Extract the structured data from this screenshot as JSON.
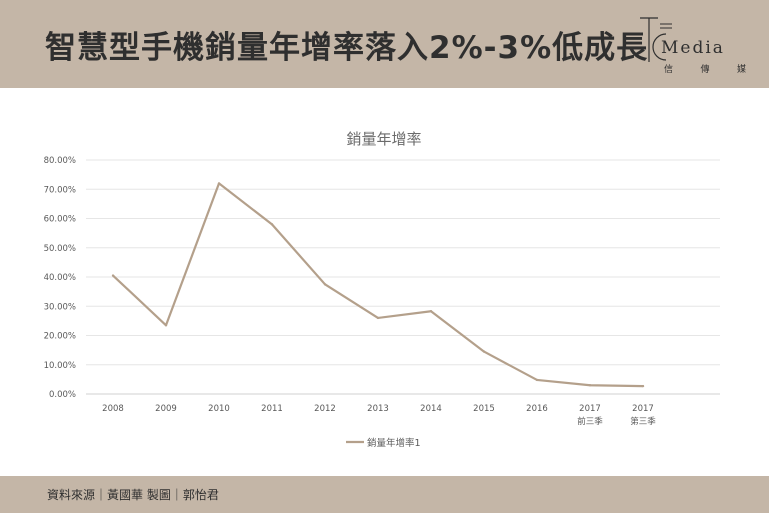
{
  "header": {
    "title": "智慧型手機銷量年增率落入2%-3%低成長"
  },
  "logo": {
    "text": "Media",
    "sub": [
      "信",
      "傳",
      "媒"
    ]
  },
  "footer": {
    "text": "資料來源｜黃國華 製圖｜郭怡君"
  },
  "colors": {
    "band": "#c4b6a7",
    "line": "#b4a08b"
  },
  "chart_data": {
    "type": "line",
    "title": "銷量年增率",
    "categories": [
      "2008",
      "2009",
      "2010",
      "2011",
      "2012",
      "2013",
      "2014",
      "2015",
      "2016",
      "2017\n前三季",
      "2017\n第三季"
    ],
    "series": [
      {
        "name": "銷量年增率1",
        "values": [
          40.5,
          23.5,
          72.0,
          58.0,
          37.5,
          26.0,
          28.3,
          14.5,
          4.8,
          3.0,
          2.7
        ]
      }
    ],
    "ylim": [
      0,
      80
    ],
    "yticks": [
      "0.00%",
      "10.00%",
      "20.00%",
      "30.00%",
      "40.00%",
      "50.00%",
      "60.00%",
      "70.00%",
      "80.00%"
    ],
    "grid": true,
    "legend": "bottom"
  }
}
